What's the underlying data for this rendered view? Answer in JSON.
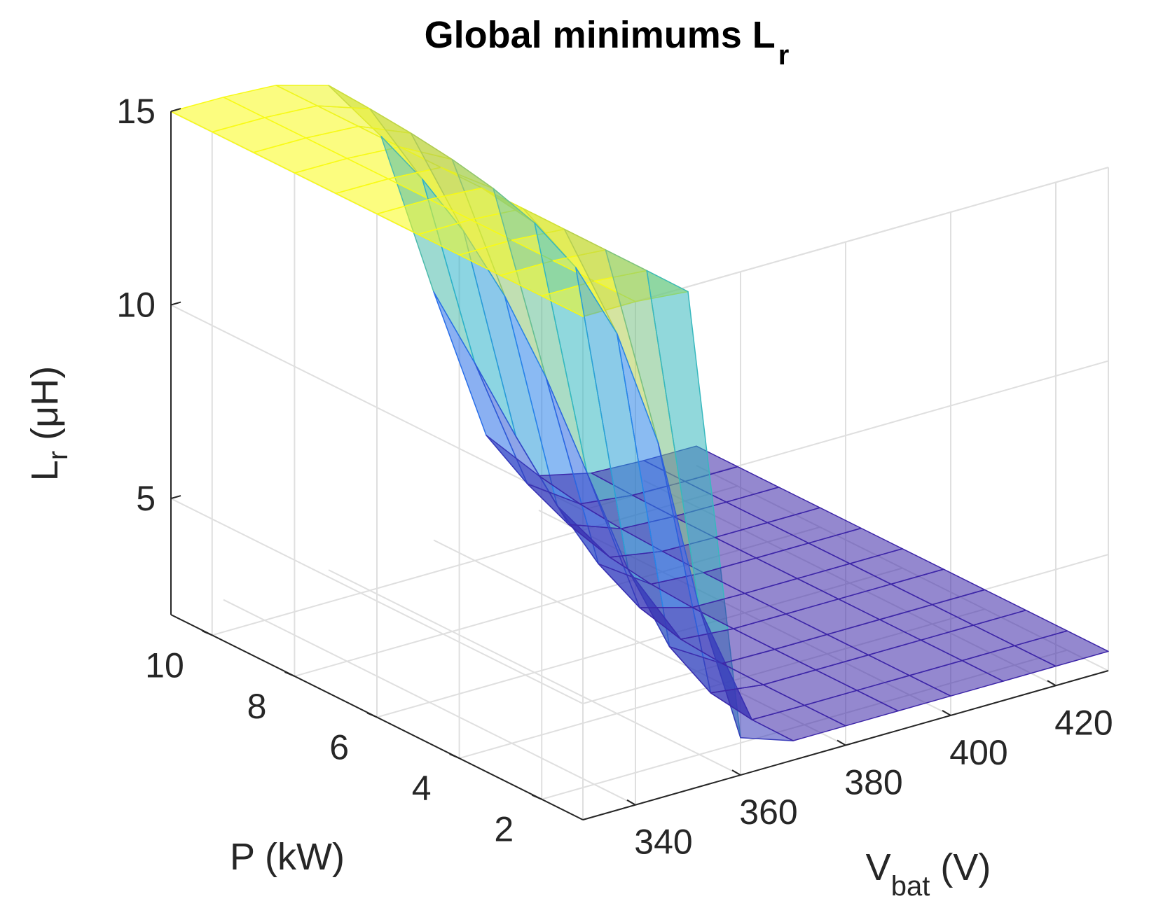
{
  "chart_data": {
    "type": "surface",
    "title": "Global minimums L",
    "title_subscript": "r",
    "zlabel_main": "L",
    "zlabel_sub": "r",
    "zlabel_unit": " (μH)",
    "xlabel": "P (kW)",
    "ylabel_main": "V",
    "ylabel_sub": "bat",
    "ylabel_unit": " (V)",
    "x_ticks": [
      "2",
      "4",
      "6",
      "8",
      "10"
    ],
    "y_ticks": [
      "340",
      "360",
      "380",
      "400",
      "420"
    ],
    "z_ticks": [
      "5",
      "10",
      "15"
    ],
    "x": [
      1,
      2,
      3,
      4,
      5,
      6,
      7,
      8,
      9,
      10,
      11
    ],
    "y": [
      330,
      340,
      350,
      360,
      370,
      380,
      390,
      400,
      410,
      420,
      430
    ],
    "xlim": [
      1,
      11
    ],
    "ylim": [
      330,
      430
    ],
    "zlim": [
      2,
      15
    ],
    "z_plateau_high": 15,
    "z_plateau_low": 2.5,
    "colormap": "parula",
    "face_alpha": 0.55,
    "grid": true,
    "colors": {
      "low": "#3d26a8",
      "mid": "#2db7c7",
      "high": "#f9fb15",
      "axis": "#262626",
      "grid": "#dfdfdf"
    }
  }
}
